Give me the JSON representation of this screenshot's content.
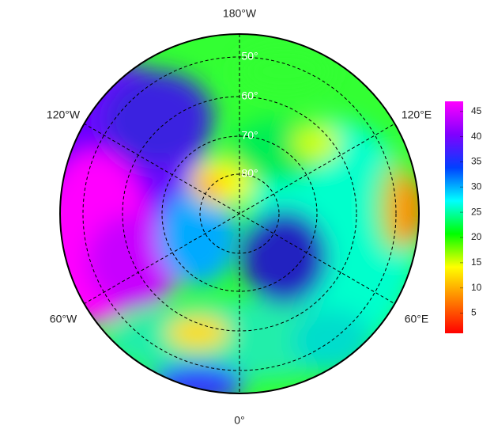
{
  "map": {
    "longitude_labels": [
      "180°W",
      "120°E",
      "60°E",
      "0°",
      "60°W",
      "120°W"
    ],
    "latitude_labels": [
      "50°",
      "60°",
      "70°",
      "80°"
    ],
    "colorbar": {
      "lim": [
        1,
        47
      ],
      "ticks": [
        5,
        10,
        15,
        20,
        25,
        30,
        35,
        40,
        45
      ],
      "colors": [
        "#ff0000",
        "#ff8000",
        "#ffff00",
        "#00ff00",
        "#00ffff",
        "#0040ff",
        "#8000ff",
        "#ff00ff"
      ]
    }
  }
}
